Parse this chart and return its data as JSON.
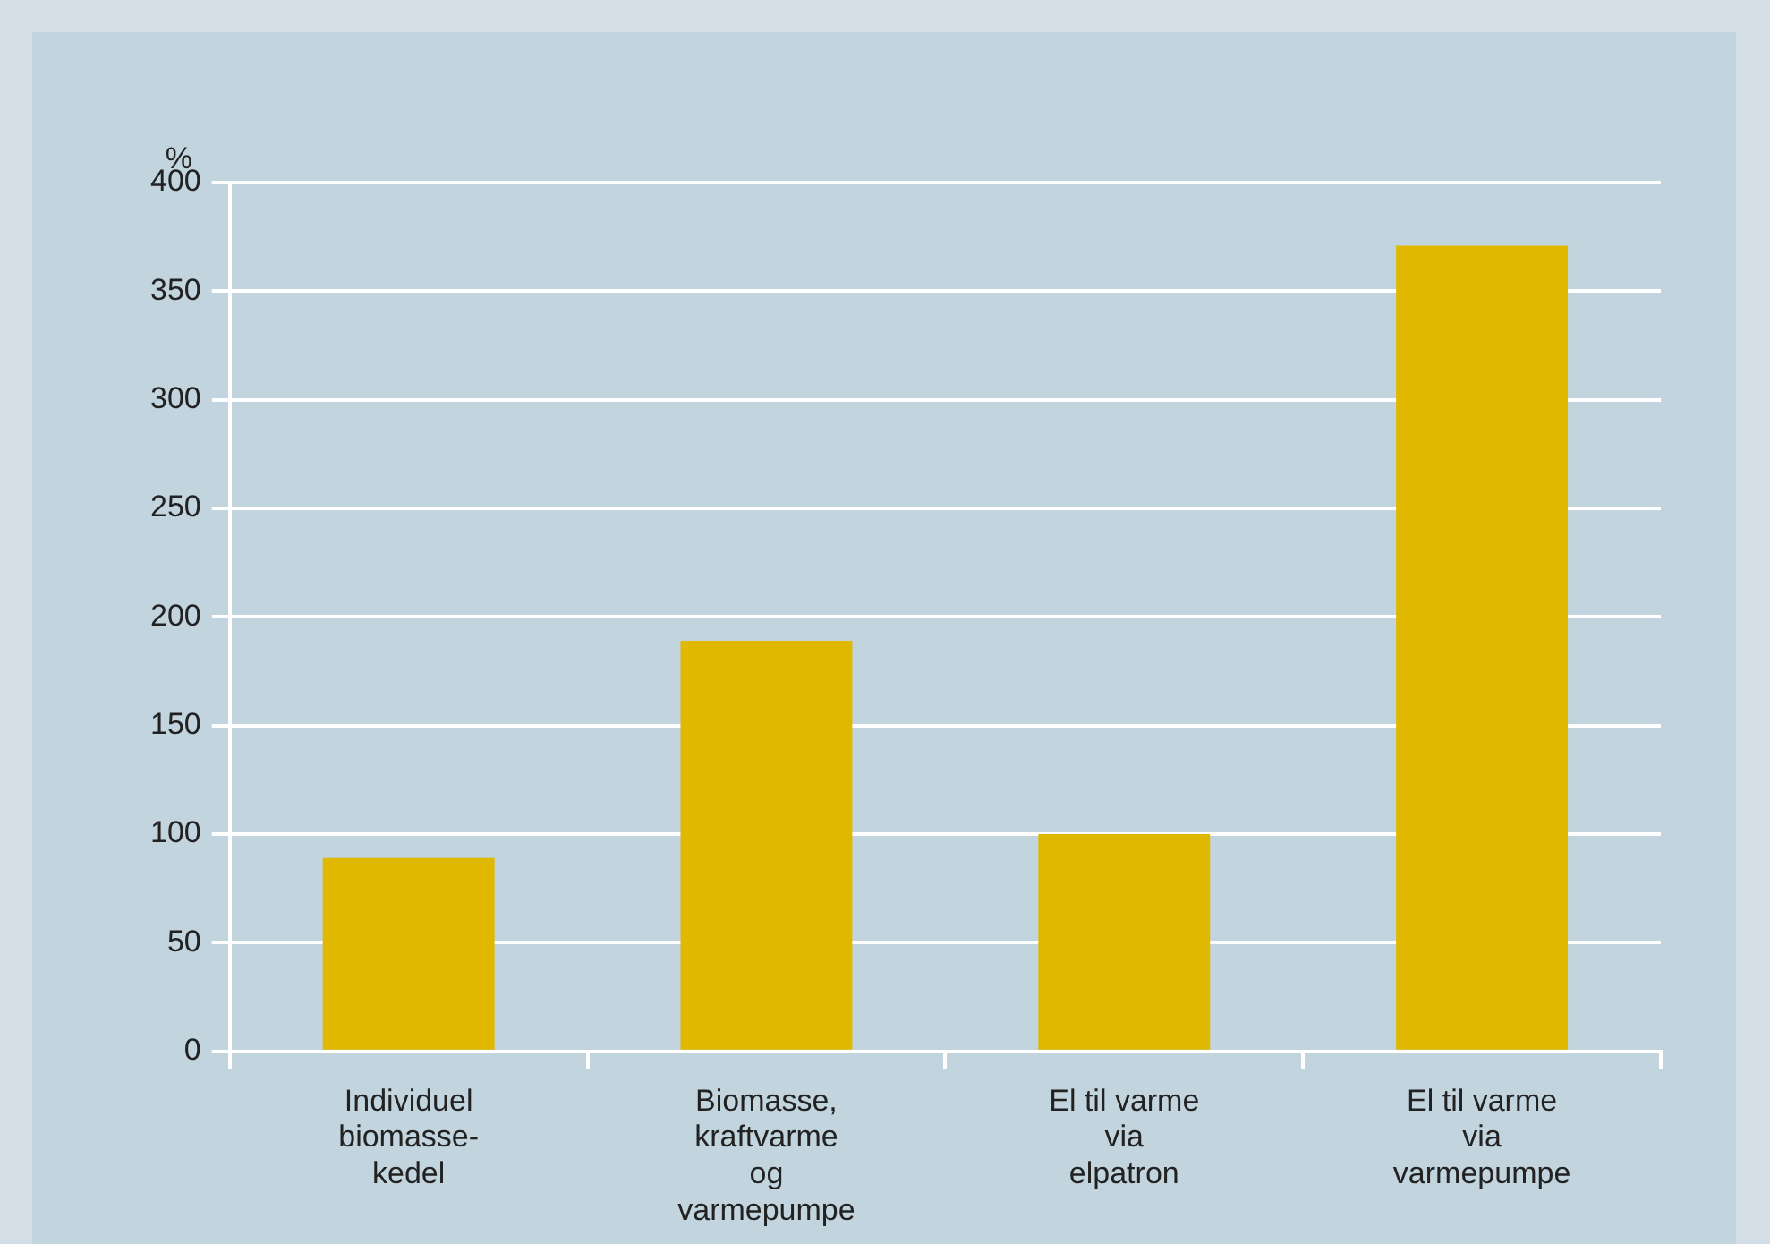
{
  "chart_data": {
    "type": "bar",
    "ylabel": "%",
    "categories": [
      "Individuel\nbiomasse-\nkedel",
      "Biomasse,\nkraftvarme\nog\nvarmepumpe",
      "El til varme\nvia\nelpatron",
      "El til varme\nvia\nvarmepumpe"
    ],
    "values": [
      89,
      189,
      100,
      371
    ],
    "color": "#e0b800",
    "ylim": [
      0,
      400
    ],
    "yticks": [
      0,
      50,
      100,
      150,
      200,
      250,
      300,
      350,
      400
    ],
    "grid": "y",
    "legend": false
  }
}
